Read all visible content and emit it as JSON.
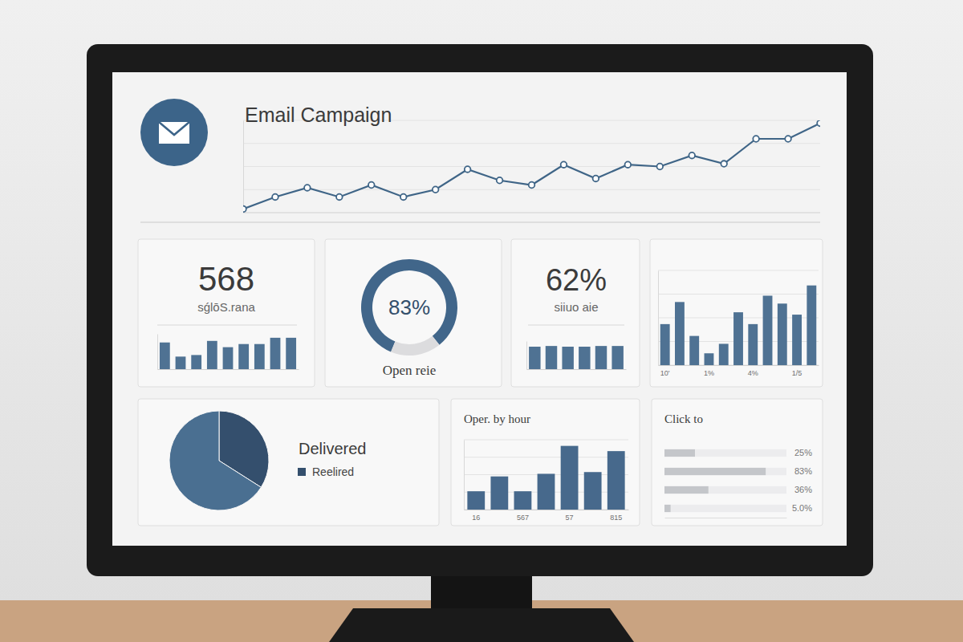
{
  "chart_data": [
    {
      "type": "line",
      "title": "Email Campaign",
      "values": [
        4,
        17,
        27,
        17,
        30,
        17,
        25,
        47,
        35,
        30,
        52,
        37,
        52,
        50,
        62,
        53,
        80,
        80,
        97
      ],
      "color": "#3f6587",
      "marker": "circle",
      "ylim": [
        0,
        100
      ],
      "yticks": [
        0,
        25,
        50,
        75,
        100
      ],
      "grid": true,
      "tick_labels": false
    },
    {
      "type": "bar",
      "title": "568",
      "subtitle": "sǵlōS.rana",
      "values": [
        34,
        16,
        18,
        36,
        28,
        32,
        32,
        40,
        40
      ],
      "color": "#4f7293",
      "ylim": [
        0,
        45
      ],
      "tick_labels": false
    },
    {
      "type": "donut",
      "title": "Open reie",
      "values": [
        83,
        17
      ],
      "value_labels": [
        "83%",
        null
      ],
      "data_labels": true,
      "colors": [
        "#41668a",
        "#dcdcde"
      ]
    },
    {
      "type": "bar",
      "title": "62%",
      "subtitle": "siiuo aie",
      "values": [
        32,
        33,
        32,
        32,
        33,
        33
      ],
      "color": "#4f7293",
      "ylim": [
        0,
        40
      ],
      "tick_labels": false
    },
    {
      "type": "bar",
      "categories": [
        "10'",
        null,
        null,
        "1%",
        null,
        null,
        "4%",
        null,
        null,
        "1/5",
        null
      ],
      "values": [
        52,
        80,
        37,
        15,
        27,
        67,
        52,
        88,
        78,
        64,
        101
      ],
      "color": "#4f7293",
      "ylim": [
        0,
        120
      ],
      "yticks": [
        0,
        30,
        60,
        90,
        120
      ],
      "grid": true,
      "tick_labels": "x"
    },
    {
      "type": "pie",
      "title": "Delivered",
      "categories": [
        "Reelired",
        null
      ],
      "values": [
        34,
        66
      ],
      "colors": [
        "#344f6d",
        "#4a6f91"
      ],
      "legend": "right"
    },
    {
      "type": "bar",
      "title": "Oper. by hour",
      "categories": [
        "16",
        null,
        "567",
        null,
        "57",
        null,
        "815"
      ],
      "values": [
        21,
        38,
        21,
        41,
        73,
        43,
        67
      ],
      "color": "#47698c",
      "ylim": [
        0,
        80
      ],
      "yticks": [
        0,
        20,
        40,
        60,
        80
      ],
      "grid": true,
      "tick_labels": "x"
    },
    {
      "type": "bar",
      "orientation": "horizontal",
      "title": "Click to",
      "values": [
        25,
        83,
        36,
        5.0
      ],
      "value_labels": [
        "25%",
        "83%",
        "36%",
        "5.0%"
      ],
      "data_labels": true,
      "color": "#c4c6ca",
      "xlim": [
        0,
        100
      ],
      "tick_labels": false
    }
  ]
}
